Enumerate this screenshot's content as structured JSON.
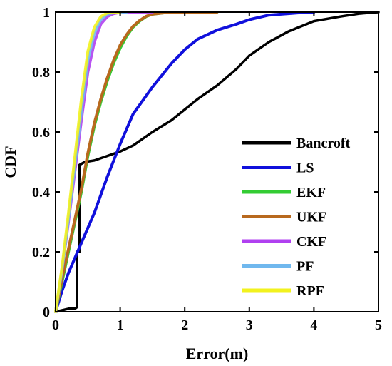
{
  "chart_data": {
    "type": "line",
    "xlabel": "Error(m)",
    "ylabel": "CDF",
    "xlim": [
      0,
      5
    ],
    "ylim": [
      0,
      1
    ],
    "xticks": [
      "0",
      "1",
      "2",
      "3",
      "4",
      "5"
    ],
    "yticks": [
      "0",
      "0.2",
      "0.4",
      "0.6",
      "0.8",
      "1"
    ],
    "grid": false,
    "legend_position": "lower-right",
    "series": [
      {
        "name": "Bancroft",
        "color": "#000000",
        "x": [
          0,
          0.1,
          0.2,
          0.3,
          0.33,
          0.33,
          0.37,
          0.37,
          0.45,
          0.6,
          0.8,
          1.0,
          1.2,
          1.5,
          1.8,
          2.0,
          2.2,
          2.5,
          2.8,
          3.0,
          3.3,
          3.6,
          4.0,
          4.4,
          4.7,
          5.0
        ],
        "y": [
          0,
          0.005,
          0.01,
          0.01,
          0.015,
          0.2,
          0.2,
          0.49,
          0.5,
          0.505,
          0.52,
          0.535,
          0.555,
          0.6,
          0.64,
          0.675,
          0.71,
          0.755,
          0.81,
          0.855,
          0.9,
          0.935,
          0.97,
          0.985,
          0.995,
          1.0
        ]
      },
      {
        "name": "LS",
        "color": "#1010dc",
        "x": [
          0,
          0.1,
          0.2,
          0.3,
          0.4,
          0.6,
          0.8,
          1.0,
          1.2,
          1.5,
          1.8,
          2.0,
          2.2,
          2.5,
          2.8,
          3.0,
          3.3,
          3.6,
          3.8,
          4.0
        ],
        "y": [
          0,
          0.07,
          0.13,
          0.18,
          0.23,
          0.33,
          0.45,
          0.56,
          0.66,
          0.75,
          0.83,
          0.875,
          0.91,
          0.94,
          0.96,
          0.975,
          0.99,
          0.995,
          0.998,
          1.0
        ]
      },
      {
        "name": "EKF",
        "color": "#33cc33",
        "x": [
          0,
          0.1,
          0.2,
          0.3,
          0.4,
          0.5,
          0.6,
          0.7,
          0.8,
          0.9,
          1.0,
          1.1,
          1.2,
          1.3,
          1.4,
          1.5,
          1.7,
          2.0,
          2.5
        ],
        "y": [
          0,
          0.1,
          0.2,
          0.3,
          0.4,
          0.52,
          0.62,
          0.7,
          0.77,
          0.83,
          0.88,
          0.92,
          0.95,
          0.97,
          0.985,
          0.993,
          0.998,
          1.0,
          1.0
        ]
      },
      {
        "name": "UKF",
        "color": "#b8691e",
        "x": [
          0,
          0.1,
          0.2,
          0.3,
          0.4,
          0.5,
          0.6,
          0.7,
          0.8,
          0.9,
          1.0,
          1.1,
          1.2,
          1.3,
          1.4,
          1.5,
          1.7,
          2.0,
          2.5
        ],
        "y": [
          0,
          0.11,
          0.21,
          0.31,
          0.41,
          0.53,
          0.63,
          0.71,
          0.78,
          0.84,
          0.89,
          0.925,
          0.953,
          0.972,
          0.986,
          0.993,
          0.998,
          1.0,
          1.0
        ]
      },
      {
        "name": "CKF",
        "color": "#b040f0",
        "x": [
          0,
          0.1,
          0.2,
          0.3,
          0.4,
          0.5,
          0.6,
          0.7,
          0.8,
          0.9,
          1.0,
          1.2,
          1.5
        ],
        "y": [
          0,
          0.14,
          0.3,
          0.47,
          0.64,
          0.8,
          0.9,
          0.96,
          0.985,
          0.995,
          0.999,
          1.0,
          1.0
        ]
      },
      {
        "name": "PF",
        "color": "#70b8ee",
        "x": [
          0,
          0.1,
          0.2,
          0.3,
          0.4,
          0.5,
          0.6,
          0.7,
          0.8,
          0.9,
          1.0,
          1.1
        ],
        "y": [
          0,
          0.14,
          0.31,
          0.49,
          0.67,
          0.84,
          0.93,
          0.975,
          0.993,
          0.998,
          1.0,
          1.0
        ]
      },
      {
        "name": "RPF",
        "color": "#f2f21e",
        "x": [
          0,
          0.1,
          0.2,
          0.3,
          0.4,
          0.5,
          0.6,
          0.7,
          0.8,
          0.9,
          1.0
        ],
        "y": [
          0,
          0.15,
          0.33,
          0.52,
          0.71,
          0.87,
          0.95,
          0.985,
          0.997,
          1.0,
          1.0
        ]
      }
    ]
  }
}
